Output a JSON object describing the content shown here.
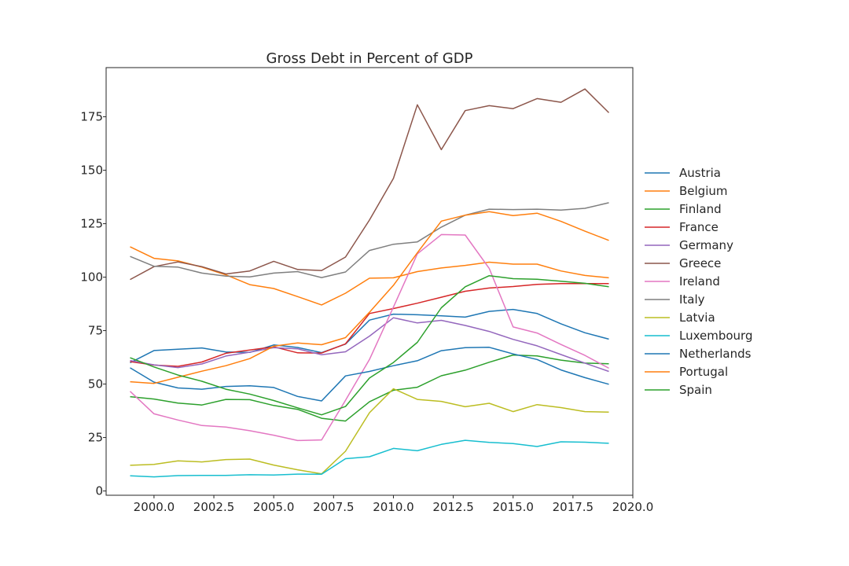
{
  "chart_data": {
    "type": "line",
    "title": "Gross Debt in Percent of GDP",
    "xlabel": "",
    "ylabel": "",
    "xlim": [
      1998.0,
      2020.0
    ],
    "ylim": [
      -2,
      198
    ],
    "x_ticks": [
      2000.0,
      2002.5,
      2005.0,
      2007.5,
      2010.0,
      2012.5,
      2015.0,
      2017.5,
      2020.0
    ],
    "x_tick_labels": [
      "2000.0",
      "2002.5",
      "2005.0",
      "2007.5",
      "2010.0",
      "2012.5",
      "2015.0",
      "2017.5",
      "2020.0"
    ],
    "y_ticks": [
      0,
      25,
      50,
      75,
      100,
      125,
      150,
      175
    ],
    "y_tick_labels": [
      "0",
      "25",
      "50",
      "75",
      "100",
      "125",
      "150",
      "175"
    ],
    "grid": false,
    "legend_position": "right-outside",
    "x": [
      1999,
      2000,
      2001,
      2002,
      2003,
      2004,
      2005,
      2006,
      2007,
      2008,
      2009,
      2010,
      2011,
      2012,
      2013,
      2014,
      2015,
      2016,
      2017,
      2018,
      2019
    ],
    "series": [
      {
        "name": "Austria",
        "color": "#1f77b4",
        "values": [
          60.0,
          65.7,
          66.3,
          66.9,
          65.0,
          64.8,
          68.3,
          67.1,
          64.7,
          68.7,
          79.9,
          82.7,
          82.4,
          81.9,
          81.3,
          84.0,
          84.9,
          83.0,
          78.2,
          74.0,
          71.0
        ]
      },
      {
        "name": "Belgium",
        "color": "#ff7f0e",
        "values": [
          114.2,
          108.8,
          107.6,
          104.7,
          101.1,
          96.5,
          94.7,
          90.9,
          87.0,
          92.5,
          99.5,
          99.7,
          102.6,
          104.3,
          105.5,
          107.0,
          106.1,
          106.1,
          102.9,
          100.8,
          99.7
        ]
      },
      {
        "name": "Finland",
        "color": "#2ca02c",
        "values": [
          44.1,
          43.0,
          41.1,
          40.2,
          42.8,
          42.7,
          40.0,
          38.2,
          34.0,
          32.7,
          41.7,
          47.1,
          48.5,
          53.9,
          56.5,
          60.2,
          63.6,
          63.2,
          61.2,
          59.8,
          59.5
        ]
      },
      {
        "name": "France",
        "color": "#d62728",
        "values": [
          60.5,
          58.9,
          58.3,
          60.3,
          64.4,
          65.9,
          67.4,
          64.6,
          64.5,
          68.8,
          83.0,
          85.3,
          87.8,
          90.6,
          93.4,
          94.9,
          95.6,
          96.6,
          97.0,
          97.0,
          97.0
        ]
      },
      {
        "name": "Germany",
        "color": "#9467bd",
        "values": [
          61.0,
          59.0,
          57.7,
          59.4,
          63.1,
          64.9,
          67.0,
          66.5,
          63.7,
          65.1,
          72.4,
          81.0,
          78.6,
          79.8,
          77.4,
          74.6,
          70.9,
          67.9,
          63.8,
          59.8,
          55.9
        ]
      },
      {
        "name": "Greece",
        "color": "#8c564b",
        "values": [
          98.9,
          104.9,
          107.1,
          104.9,
          101.5,
          102.9,
          107.4,
          103.6,
          103.1,
          109.4,
          126.7,
          146.2,
          180.6,
          159.6,
          177.9,
          180.2,
          178.8,
          183.5,
          181.8,
          188.0,
          176.9
        ]
      },
      {
        "name": "Ireland",
        "color": "#e377c2",
        "values": [
          46.6,
          36.1,
          33.2,
          30.6,
          29.9,
          28.2,
          26.1,
          23.6,
          23.9,
          42.4,
          61.5,
          86.0,
          110.9,
          119.9,
          119.7,
          104.1,
          76.7,
          73.9,
          68.5,
          63.4,
          57.4
        ]
      },
      {
        "name": "Italy",
        "color": "#7f7f7f",
        "values": [
          109.7,
          105.1,
          104.7,
          101.9,
          100.5,
          100.1,
          101.9,
          102.6,
          99.8,
          102.4,
          112.5,
          115.4,
          116.5,
          123.4,
          129.0,
          131.8,
          131.6,
          131.8,
          131.4,
          132.2,
          134.8
        ]
      },
      {
        "name": "Latvia",
        "color": "#bcbd22",
        "values": [
          12.0,
          12.4,
          14.1,
          13.6,
          14.7,
          14.9,
          12.1,
          9.9,
          8.0,
          18.6,
          36.6,
          47.8,
          42.8,
          41.9,
          39.4,
          41.0,
          37.1,
          40.4,
          39.0,
          37.1,
          36.9
        ]
      },
      {
        "name": "Luxembourg",
        "color": "#17becf",
        "values": [
          7.1,
          6.6,
          7.2,
          7.3,
          7.3,
          7.6,
          7.5,
          7.9,
          7.8,
          15.1,
          16.0,
          19.9,
          18.8,
          21.8,
          23.7,
          22.7,
          22.2,
          20.8,
          23.0,
          22.8,
          22.3
        ]
      },
      {
        "name": "Netherlands",
        "color": "#1f77b4",
        "values": [
          57.6,
          50.9,
          48.2,
          47.6,
          48.9,
          49.2,
          48.4,
          44.2,
          42.1,
          53.8,
          55.9,
          58.6,
          60.9,
          65.6,
          67.0,
          67.2,
          64.1,
          61.5,
          56.6,
          53.0,
          49.9
        ]
      },
      {
        "name": "Portugal",
        "color": "#ff7f0e",
        "values": [
          51.1,
          50.3,
          53.2,
          56.0,
          58.6,
          61.9,
          67.7,
          69.2,
          68.4,
          71.7,
          83.6,
          96.2,
          111.4,
          126.2,
          129.0,
          130.6,
          128.8,
          129.9,
          126.1,
          121.5,
          117.2
        ]
      },
      {
        "name": "Spain",
        "color": "#2ca02c",
        "values": [
          62.3,
          58.0,
          54.2,
          51.3,
          47.6,
          45.3,
          42.3,
          38.9,
          35.6,
          39.5,
          52.8,
          60.1,
          69.5,
          85.7,
          95.5,
          100.7,
          99.3,
          99.0,
          98.1,
          97.1,
          95.5
        ]
      }
    ]
  }
}
